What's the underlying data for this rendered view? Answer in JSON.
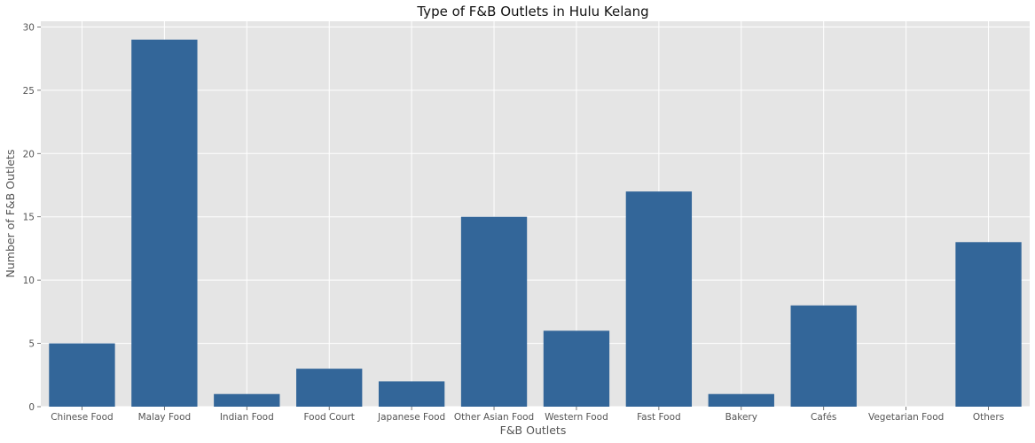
{
  "chart_data": {
    "type": "bar",
    "title": "Type of F&B Outlets in Hulu Kelang",
    "xlabel": "F&B Outlets",
    "ylabel": "Number of F&B Outlets",
    "categories": [
      "Chinese Food",
      "Malay Food",
      "Indian Food",
      "Food Court",
      "Japanese Food",
      "Other Asian Food",
      "Western Food",
      "Fast Food",
      "Bakery",
      "Cafés",
      "Vegetarian Food",
      "Others"
    ],
    "values": [
      5,
      29,
      1,
      3,
      2,
      15,
      6,
      17,
      1,
      8,
      0,
      13
    ],
    "ylim": [
      0,
      30.45
    ],
    "yticks": [
      0,
      5,
      10,
      15,
      20,
      25,
      30
    ],
    "grid": true,
    "legend": "none",
    "colors": {
      "bar": "#336699",
      "plot_background": "#e5e5e5",
      "grid": "#ffffff"
    }
  }
}
